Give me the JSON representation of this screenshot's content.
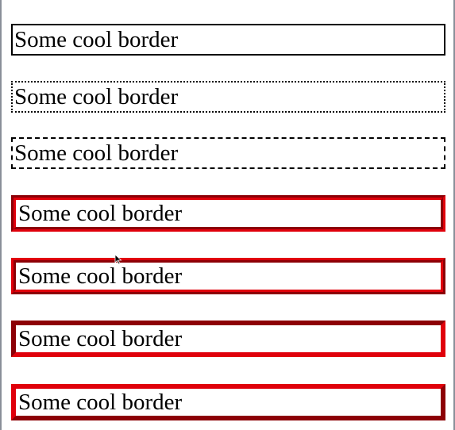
{
  "boxes": [
    {
      "label": "Some cool border"
    },
    {
      "label": "Some cool border"
    },
    {
      "label": "Some cool border"
    },
    {
      "label": "Some cool border"
    },
    {
      "label": "Some cool border"
    },
    {
      "label": "Some cool border"
    },
    {
      "label": "Some cool border"
    }
  ],
  "colors": {
    "accent_red": "#e0000b",
    "frame_gray": "#8a8f99"
  },
  "icons": {
    "cursor": "mouse-pointer-icon"
  }
}
